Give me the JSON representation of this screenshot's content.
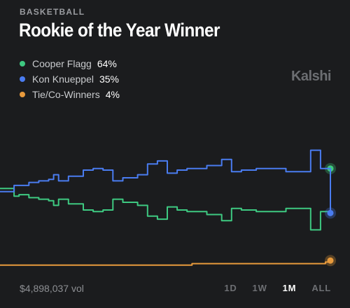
{
  "header": {
    "category": "BASKETBALL",
    "title": "Rookie of the Year Winner",
    "brand": "Kalshi"
  },
  "footer": {
    "volume": "$4,898,037 vol",
    "ranges": [
      "1D",
      "1W",
      "1M",
      "ALL"
    ],
    "active_range": "1M"
  },
  "chart_data": {
    "type": "line",
    "title": "Rookie of the Year Winner",
    "ylim": [
      0,
      100
    ],
    "grid": false,
    "legend_position": "top-left",
    "series": [
      {
        "name": "Cooper Flagg",
        "label": "64%",
        "color": "#3ec981",
        "values": [
          51,
          51,
          46,
          47,
          47,
          45,
          45,
          44,
          44,
          43,
          40,
          44,
          44,
          41,
          41,
          41,
          37,
          37,
          36,
          36,
          37,
          37,
          44,
          44,
          42,
          42,
          42,
          40,
          40,
          33,
          33,
          31,
          31,
          39,
          39,
          37,
          37,
          36,
          36,
          36,
          36,
          34,
          34,
          34,
          30,
          30,
          38,
          38,
          37,
          37,
          37,
          36,
          36,
          36,
          36,
          36,
          36,
          38,
          38,
          38,
          38,
          38,
          24,
          24,
          36,
          36,
          64
        ]
      },
      {
        "name": "Kon Knueppel",
        "label": "35%",
        "color": "#4a7cf0",
        "values": [
          49,
          49,
          53,
          53,
          53,
          55,
          55,
          56,
          56,
          57,
          60,
          56,
          56,
          59,
          59,
          59,
          63,
          63,
          64,
          64,
          63,
          63,
          56,
          56,
          58,
          58,
          58,
          60,
          60,
          67,
          67,
          69,
          69,
          61,
          61,
          63,
          63,
          64,
          64,
          64,
          64,
          66,
          66,
          66,
          70,
          70,
          62,
          62,
          63,
          63,
          63,
          64,
          64,
          64,
          64,
          64,
          64,
          62,
          62,
          62,
          62,
          62,
          76,
          76,
          64,
          64,
          35
        ]
      },
      {
        "name": "Tie/Co-Winners",
        "label": "4%",
        "color": "#e89a3c",
        "values": [
          1,
          1,
          1,
          1,
          1,
          1,
          1,
          1,
          1,
          1,
          1,
          1,
          1,
          1,
          1,
          1,
          1,
          1,
          1,
          1,
          1,
          1,
          1,
          1,
          1,
          1,
          1,
          1,
          1,
          1,
          1,
          1,
          1,
          1,
          1,
          1,
          1,
          1,
          2,
          2,
          2,
          2,
          2,
          2,
          2,
          2,
          2,
          2,
          2,
          2,
          2,
          2,
          2,
          2,
          2,
          2,
          2,
          2,
          2,
          2,
          2,
          2,
          2,
          2,
          2,
          3,
          4
        ]
      }
    ]
  }
}
